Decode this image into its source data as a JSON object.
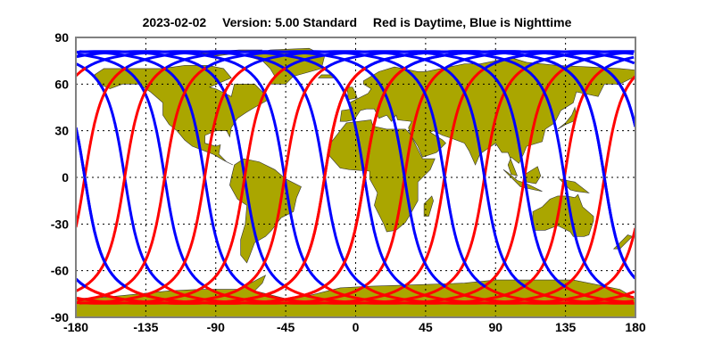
{
  "title": {
    "date": "2023-02-02",
    "version": "Version: 5.00  Standard",
    "legend": "Red is Daytime, Blue is Nighttime"
  },
  "axes": {
    "x_ticks": [
      "-180",
      "-135",
      "-90",
      "-45",
      "0",
      "45",
      "90",
      "135",
      "180"
    ],
    "y_ticks": [
      "90",
      "60",
      "30",
      "0",
      "-30",
      "-60",
      "-90"
    ],
    "x_range": [
      -180,
      180
    ],
    "y_range": [
      -90,
      90
    ],
    "grid": "dotted"
  },
  "colors": {
    "land": "#aaa600",
    "day_track": "#ff0000",
    "night_track": "#0000ff",
    "frame": "#808080"
  },
  "tracks": {
    "count": 14,
    "max_latitude": 81,
    "day_color_label": "Red",
    "night_color_label": "Blue"
  }
}
